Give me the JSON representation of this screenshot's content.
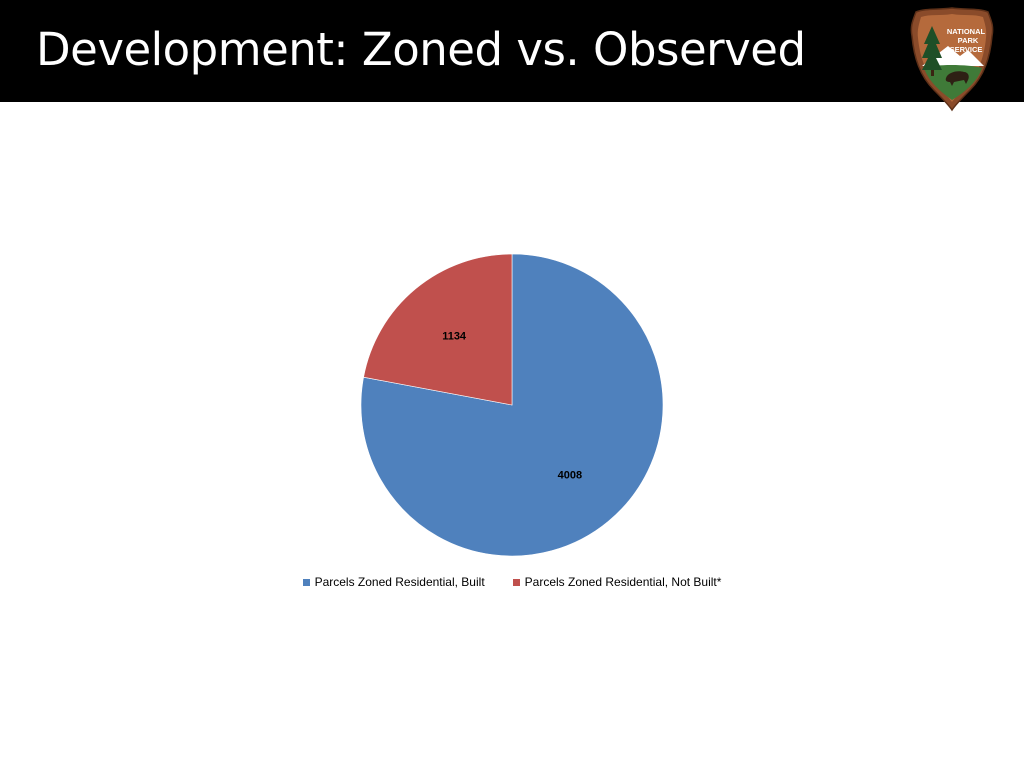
{
  "slide": {
    "title": "Development: Zoned vs. Observed",
    "logo_text": [
      "NATIONAL",
      "PARK",
      "SERVICE"
    ]
  },
  "chart_data": {
    "type": "pie",
    "title": "",
    "categories": [
      "Parcels Zoned Residential, Built",
      "Parcels Zoned Residential, Not Built*"
    ],
    "values": [
      4008,
      1134
    ],
    "colors": [
      "#4f81bd",
      "#c0504d"
    ],
    "data_labels": [
      "4008",
      "1134"
    ],
    "start_angle_deg": 0,
    "direction": "clockwise",
    "legend_position": "bottom",
    "legend": [
      {
        "label": "Parcels Zoned Residential, Built",
        "color": "#4f81bd"
      },
      {
        "label": "Parcels Zoned Residential, Not Built*",
        "color": "#c0504d"
      }
    ]
  }
}
